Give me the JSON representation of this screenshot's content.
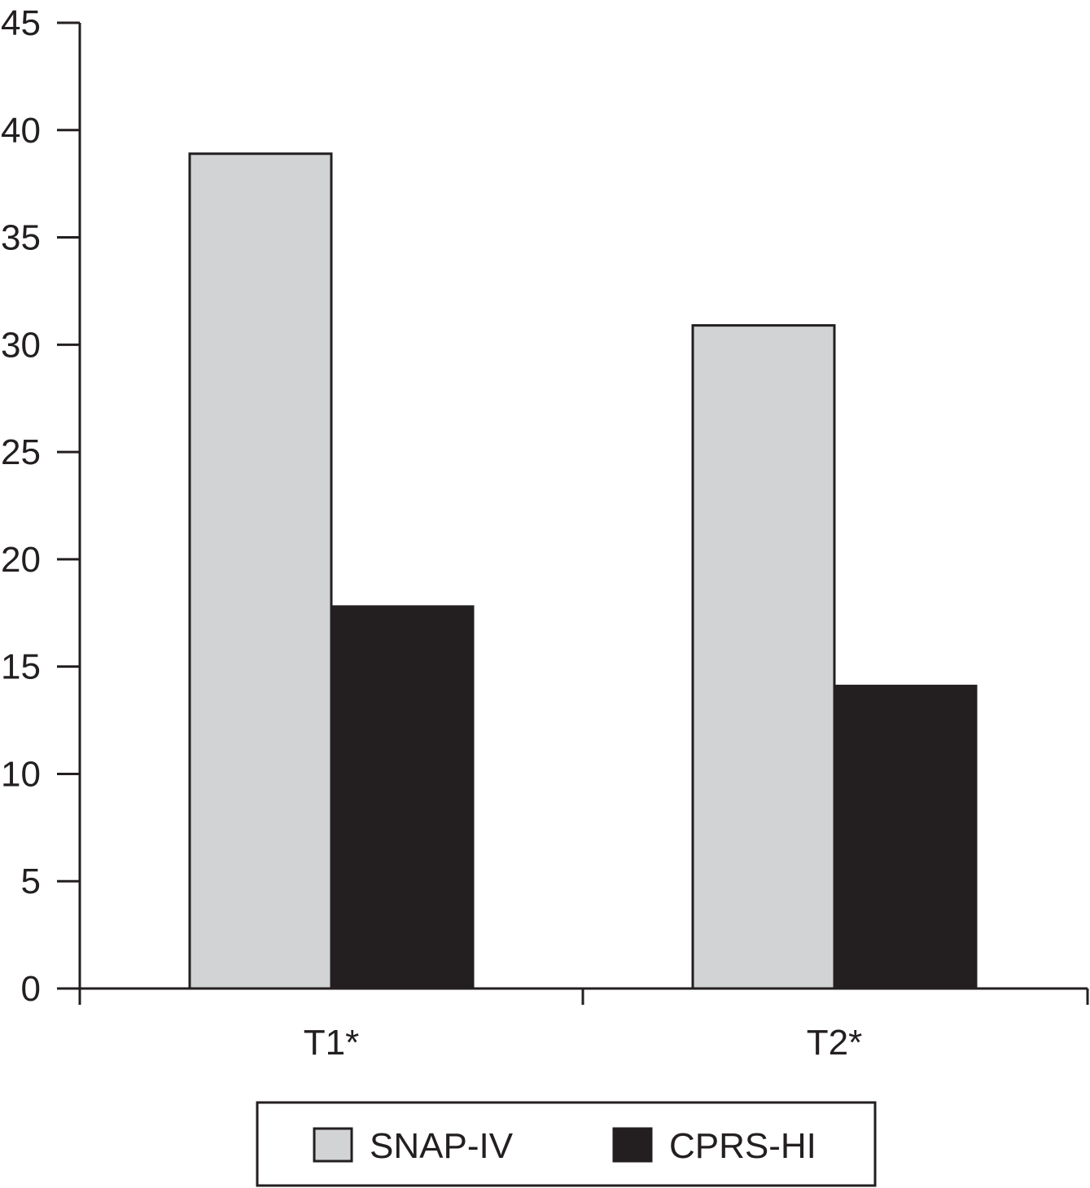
{
  "chart_data": {
    "type": "bar",
    "title": "",
    "xlabel": "",
    "ylabel": "",
    "categories": [
      "T1*",
      "T2*"
    ],
    "series": [
      {
        "name": "SNAP-IV",
        "values": [
          38.9,
          30.9
        ],
        "color": "#d1d3d4"
      },
      {
        "name": "CPRS-HI",
        "values": [
          17.8,
          14.1
        ],
        "color": "#231f20"
      }
    ],
    "ylim": [
      0,
      45
    ],
    "yticks": [
      0,
      5,
      10,
      15,
      20,
      25,
      30,
      35,
      40,
      45
    ],
    "grid": false,
    "legend_position": "bottom-center"
  },
  "colors": {
    "axis": "#231f20",
    "bar_outline": "#231f20",
    "background": "#ffffff"
  }
}
